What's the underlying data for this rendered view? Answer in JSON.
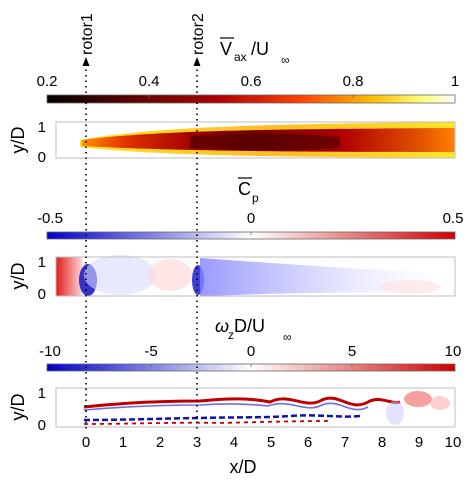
{
  "markers": {
    "rotor1": "rotor1",
    "rotor2": "rotor2"
  },
  "panel1": {
    "title_main": "V",
    "title_sub": "ax",
    "title_rest": "/U",
    "title_inf": "∞",
    "colorbar_ticks": [
      "0.2",
      "0.4",
      "0.6",
      "0.8",
      "1"
    ],
    "ylabel": "y/D",
    "yticks": [
      "1",
      "0"
    ]
  },
  "panel2": {
    "title_main": "C",
    "title_sub": "p",
    "colorbar_ticks": [
      "-0.5",
      "0",
      "0.5"
    ],
    "ylabel": "y/D",
    "yticks": [
      "1",
      "0"
    ]
  },
  "panel3": {
    "title_main": "ω",
    "title_sub": "z",
    "title_rest": " D/U",
    "title_inf": "∞",
    "colorbar_ticks": [
      "-10",
      "-5",
      "0",
      "5",
      "10"
    ],
    "ylabel": "y/D",
    "yticks": [
      "1",
      "0"
    ],
    "xticks": [
      "0",
      "1",
      "2",
      "3",
      "4",
      "5",
      "6",
      "7",
      "8",
      "9",
      "10"
    ],
    "xlabel": "x/D"
  },
  "colors": {
    "hot_dark": "#000000",
    "hot_red": "#c00000",
    "hot_yellow": "#ffff00",
    "div_blue": "#1010d0",
    "div_red": "#d01010"
  }
}
